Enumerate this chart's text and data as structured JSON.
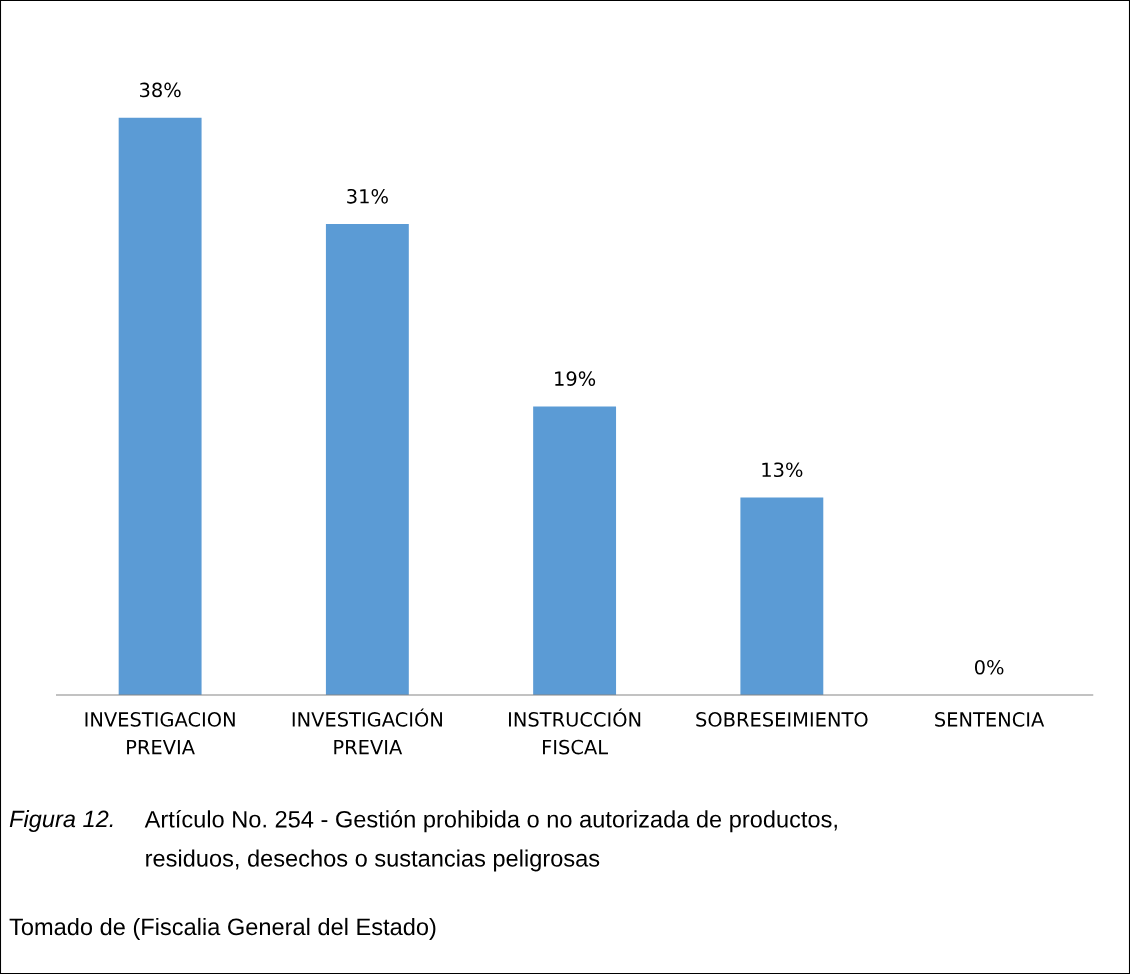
{
  "chart_data": {
    "type": "bar",
    "categories": [
      "INVESTIGACION\nPREVIA",
      "INVESTIGACIÓN\nPREVIA",
      "INSTRUCCIÓN\nFISCAL",
      "SOBRESEIMIENTO",
      "SENTENCIA"
    ],
    "values": [
      38,
      31,
      19,
      13,
      0
    ],
    "value_labels": [
      "38%",
      "31%",
      "19%",
      "13%",
      "0%"
    ],
    "color": "#5b9bd5",
    "grid": false,
    "legend": false,
    "annotations": [
      "Figura 12.",
      "Artículo No. 254 - Gestión prohibida o no autorizada de productos,\nresiduos, desechos o sustancias peligrosas",
      "Tomado de (Fiscalia General del Estado)"
    ]
  }
}
